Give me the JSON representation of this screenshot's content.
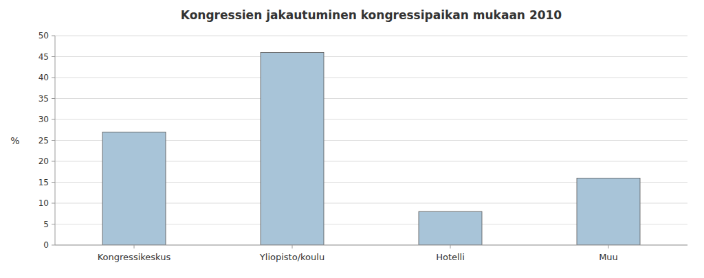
{
  "chart_data": {
    "type": "bar",
    "title": "Kongressien jakautuminen kongressipaikan mukaan 2010",
    "ylabel": "%",
    "categories": [
      "Kongressikeskus",
      "Yliopisto/koulu",
      "Hotelli",
      "Muu"
    ],
    "values": [
      27,
      46,
      8,
      16
    ],
    "color": "#a8c4d8",
    "ylim": [
      0,
      50
    ],
    "yticks": [
      0,
      5,
      10,
      15,
      20,
      25,
      30,
      35,
      40,
      45,
      50
    ],
    "grid": true
  }
}
